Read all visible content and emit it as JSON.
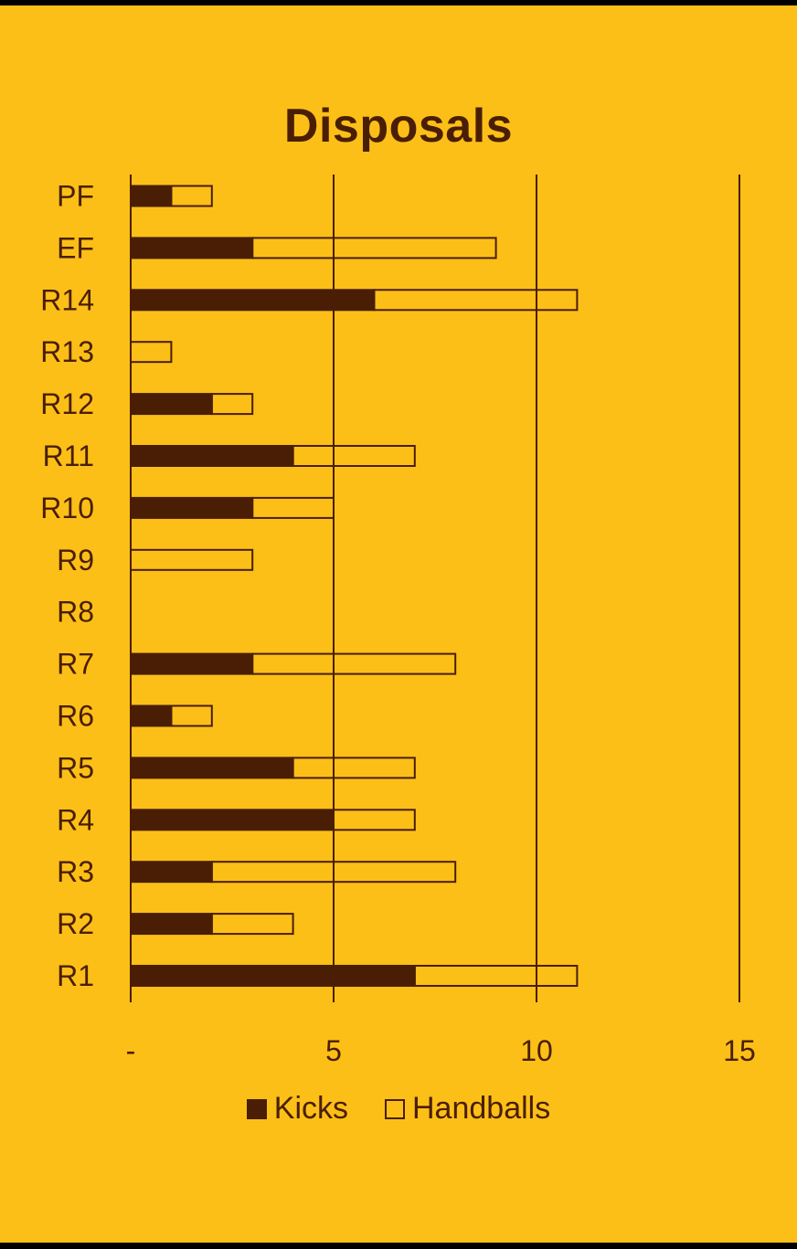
{
  "chart_data": {
    "type": "bar",
    "orientation": "horizontal",
    "stacked": true,
    "title": "Disposals",
    "categories": [
      "R1",
      "R2",
      "R3",
      "R4",
      "R5",
      "R6",
      "R7",
      "R8",
      "R9",
      "R10",
      "R11",
      "R12",
      "R13",
      "R14",
      "EF",
      "PF"
    ],
    "series": [
      {
        "name": "Kicks",
        "values": [
          7,
          2,
          2,
          5,
          4,
          1,
          3,
          0,
          0,
          3,
          4,
          2,
          0,
          6,
          3,
          1
        ]
      },
      {
        "name": "Handballs",
        "values": [
          4,
          2,
          6,
          2,
          3,
          1,
          5,
          0,
          3,
          2,
          3,
          1,
          1,
          5,
          6,
          1
        ]
      }
    ],
    "x_ticks": [
      "-",
      "5",
      "10",
      "15"
    ],
    "xlim": [
      0,
      15
    ],
    "grid": true,
    "legend_position": "bottom"
  },
  "colors": {
    "background": "#FBBF18",
    "dark": "#4A1E04"
  }
}
